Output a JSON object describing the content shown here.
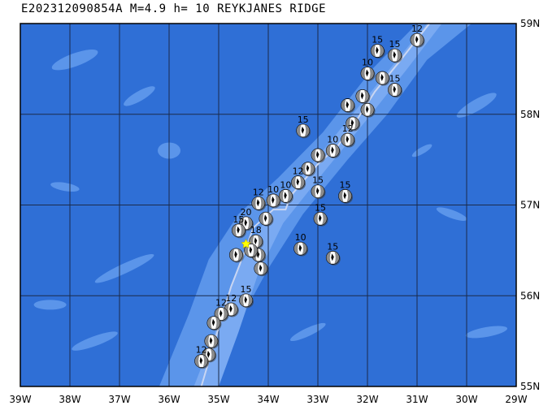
{
  "title": "E202312090854A M=4.9 h= 10 REYKJANES RIDGE",
  "map": {
    "lon_range": [
      -39,
      -29
    ],
    "lat_range": [
      55,
      59
    ],
    "lon_ticks": [
      "39W",
      "38W",
      "37W",
      "36W",
      "35W",
      "34W",
      "33W",
      "32W",
      "31W",
      "30W",
      "29W"
    ],
    "lat_ticks": [
      "59N",
      "58N",
      "57N",
      "56N",
      "55N"
    ],
    "colors": {
      "deep_ocean": "#2f6fd6",
      "shallow_ocean": "#5b95ea",
      "ridge_crest": "#7aaaf2",
      "grid": "#1b2a4a",
      "plate_boundary": "#c9d6f2",
      "mechanism_fill": "#ffffff",
      "mechanism_shade": "#8a8a8a",
      "event_star": "#ffff00"
    },
    "event": {
      "lon": -34.45,
      "lat": 56.57
    },
    "mechanisms": [
      {
        "lon": -31.0,
        "lat": 58.82,
        "label": "12"
      },
      {
        "lon": -31.45,
        "lat": 58.65,
        "label": "15"
      },
      {
        "lon": -31.8,
        "lat": 58.7,
        "label": "15"
      },
      {
        "lon": -31.7,
        "lat": 58.4,
        "label": ""
      },
      {
        "lon": -31.45,
        "lat": 58.27,
        "label": "15"
      },
      {
        "lon": -32.0,
        "lat": 58.45,
        "label": "10"
      },
      {
        "lon": -32.1,
        "lat": 58.2,
        "label": ""
      },
      {
        "lon": -32.4,
        "lat": 58.1,
        "label": ""
      },
      {
        "lon": -32.0,
        "lat": 58.05,
        "label": ""
      },
      {
        "lon": -32.3,
        "lat": 57.9,
        "label": ""
      },
      {
        "lon": -33.3,
        "lat": 57.82,
        "label": "15"
      },
      {
        "lon": -32.4,
        "lat": 57.72,
        "label": "12"
      },
      {
        "lon": -32.7,
        "lat": 57.6,
        "label": "10"
      },
      {
        "lon": -33.0,
        "lat": 57.55,
        "label": ""
      },
      {
        "lon": -33.2,
        "lat": 57.4,
        "label": ""
      },
      {
        "lon": -33.4,
        "lat": 57.25,
        "label": "12"
      },
      {
        "lon": -33.65,
        "lat": 57.1,
        "label": "10"
      },
      {
        "lon": -33.9,
        "lat": 57.05,
        "label": "10"
      },
      {
        "lon": -34.2,
        "lat": 57.02,
        "label": "12"
      },
      {
        "lon": -34.05,
        "lat": 56.85,
        "label": ""
      },
      {
        "lon": -33.0,
        "lat": 57.15,
        "label": "15"
      },
      {
        "lon": -32.45,
        "lat": 57.1,
        "label": "15"
      },
      {
        "lon": -32.95,
        "lat": 56.85,
        "label": "15"
      },
      {
        "lon": -34.45,
        "lat": 56.8,
        "label": "20"
      },
      {
        "lon": -34.6,
        "lat": 56.72,
        "label": "15"
      },
      {
        "lon": -34.25,
        "lat": 56.6,
        "label": "18"
      },
      {
        "lon": -34.2,
        "lat": 56.45,
        "label": ""
      },
      {
        "lon": -34.35,
        "lat": 56.5,
        "label": ""
      },
      {
        "lon": -34.65,
        "lat": 56.45,
        "label": ""
      },
      {
        "lon": -34.15,
        "lat": 56.3,
        "label": ""
      },
      {
        "lon": -33.35,
        "lat": 56.52,
        "label": "10"
      },
      {
        "lon": -32.7,
        "lat": 56.42,
        "label": "15"
      },
      {
        "lon": -34.45,
        "lat": 55.95,
        "label": "15"
      },
      {
        "lon": -34.75,
        "lat": 55.85,
        "label": "12"
      },
      {
        "lon": -34.95,
        "lat": 55.8,
        "label": "12"
      },
      {
        "lon": -35.1,
        "lat": 55.7,
        "label": ""
      },
      {
        "lon": -35.15,
        "lat": 55.5,
        "label": ""
      },
      {
        "lon": -35.2,
        "lat": 55.35,
        "label": ""
      },
      {
        "lon": -35.35,
        "lat": 55.28,
        "label": "12"
      }
    ]
  }
}
